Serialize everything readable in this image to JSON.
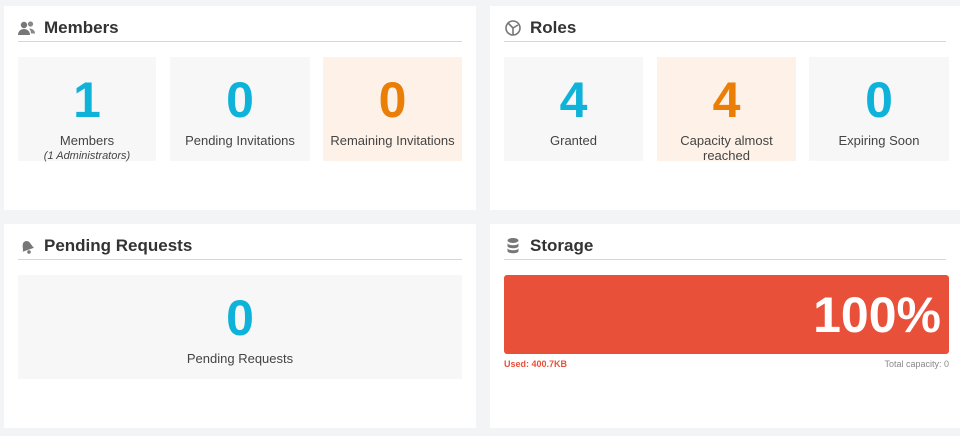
{
  "members": {
    "title": "Members",
    "icon": "users-icon",
    "stats": [
      {
        "value": "1",
        "label": "Members",
        "sub": "(1 Administrators)"
      },
      {
        "value": "0",
        "label": "Pending Invitations"
      },
      {
        "value": "0",
        "label": "Remaining Invitations"
      }
    ]
  },
  "roles": {
    "title": "Roles",
    "icon": "roles-icon",
    "stats": [
      {
        "value": "4",
        "label": "Granted"
      },
      {
        "value": "4",
        "label": "Capacity almost reached"
      },
      {
        "value": "0",
        "label": "Expiring Soon"
      }
    ]
  },
  "requests": {
    "title": "Pending Requests",
    "icon": "bell-icon",
    "stat": {
      "value": "0",
      "label": "Pending Requests"
    }
  },
  "storage": {
    "title": "Storage",
    "icon": "database-icon",
    "percent_label": "100%",
    "percent": 100,
    "used": "Used: 400.7KB",
    "total": "Total capacity: 0",
    "bar_color": "#e8503a"
  },
  "colors": {
    "accent": "#0fb3d9",
    "warning": "#ea7e06"
  }
}
